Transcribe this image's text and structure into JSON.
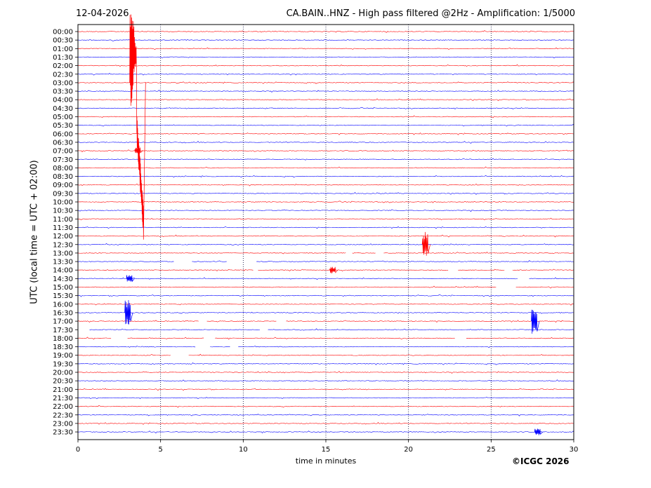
{
  "header": {
    "date": "12-04-2026",
    "title": "CA.BAIN..HNZ - High pass filtered @2Hz - Amplification: 1/5000"
  },
  "footer": {
    "copyright": "©ICGC 2026"
  },
  "chart_data": {
    "type": "line",
    "title": "CA.BAIN..HNZ - High pass filtered @2Hz - Amplification: 1/5000",
    "xlabel": "time in minutes",
    "ylabel": "UTC (local time = UTC + 02:00)",
    "xlim": [
      0,
      30
    ],
    "xticks": [
      0,
      5,
      10,
      15,
      20,
      25,
      30
    ],
    "vertical_gridlines": [
      5,
      10,
      15,
      20,
      25
    ],
    "grid": "vertical dotted",
    "legend": "none",
    "rows": [
      "00:00",
      "00:30",
      "01:00",
      "01:30",
      "02:00",
      "02:30",
      "03:00",
      "03:30",
      "04:00",
      "04:30",
      "05:00",
      "05:30",
      "06:00",
      "06:30",
      "07:00",
      "07:30",
      "08:00",
      "08:30",
      "09:00",
      "09:30",
      "10:00",
      "10:30",
      "11:00",
      "11:30",
      "12:00",
      "12:30",
      "13:00",
      "13:30",
      "14:00",
      "14:30",
      "15:00",
      "15:30",
      "16:00",
      "16:30",
      "17:00",
      "17:30",
      "18:00",
      "18:30",
      "19:00",
      "19:30",
      "20:00",
      "20:30",
      "21:00",
      "21:30",
      "22:00",
      "22:30",
      "23:00",
      "23:30"
    ],
    "row_colors": [
      "#ff0000",
      "#0000ff"
    ],
    "gaps": [
      {
        "row": "13:00",
        "ranges": [
          [
            16.2,
            16.6
          ],
          [
            18.0,
            18.5
          ]
        ]
      },
      {
        "row": "13:30",
        "ranges": [
          [
            5.8,
            6.9
          ],
          [
            9.0,
            10.8
          ]
        ]
      },
      {
        "row": "14:00",
        "ranges": [
          [
            10.6,
            10.9
          ],
          [
            22.4,
            23.0
          ],
          [
            25.8,
            26.3
          ]
        ]
      },
      {
        "row": "14:30",
        "ranges": [
          [
            26.6,
            27.3
          ]
        ]
      },
      {
        "row": "15:00",
        "ranges": [
          [
            25.3,
            26.5
          ]
        ]
      },
      {
        "row": "17:00",
        "ranges": [
          [
            7.3,
            7.8
          ],
          [
            12.0,
            12.6
          ]
        ]
      },
      {
        "row": "17:30",
        "ranges": [
          [
            0.0,
            0.7
          ],
          [
            11.0,
            11.5
          ]
        ]
      },
      {
        "row": "18:00",
        "ranges": [
          [
            2.0,
            3.0
          ],
          [
            7.6,
            8.3
          ],
          [
            22.8,
            23.5
          ]
        ]
      },
      {
        "row": "18:30",
        "ranges": [
          [
            7.1,
            8.0
          ],
          [
            9.2,
            9.7
          ]
        ]
      },
      {
        "row": "19:00",
        "ranges": [
          [
            5.6,
            6.7
          ]
        ]
      }
    ],
    "events": [
      {
        "row": "03:00",
        "x": 3.3,
        "color": "#ff0000",
        "amplitude": "large"
      },
      {
        "row": "07:00",
        "x": 3.6,
        "color": "#ff0000",
        "amplitude": "small"
      },
      {
        "row": "12:30",
        "x": 21.0,
        "color": "#ff0000",
        "amplitude": "medium"
      },
      {
        "row": "14:00",
        "x": 15.4,
        "color": "#ff0000",
        "amplitude": "small"
      },
      {
        "row": "14:30",
        "x": 3.1,
        "color": "#0000ff",
        "amplitude": "small"
      },
      {
        "row": "16:30",
        "x": 3.0,
        "color": "#0000ff",
        "amplitude": "medium"
      },
      {
        "row": "17:00",
        "x": 27.6,
        "color": "#0000ff",
        "amplitude": "medium"
      },
      {
        "row": "23:30",
        "x": 27.8,
        "color": "#0000ff",
        "amplitude": "small"
      }
    ]
  }
}
